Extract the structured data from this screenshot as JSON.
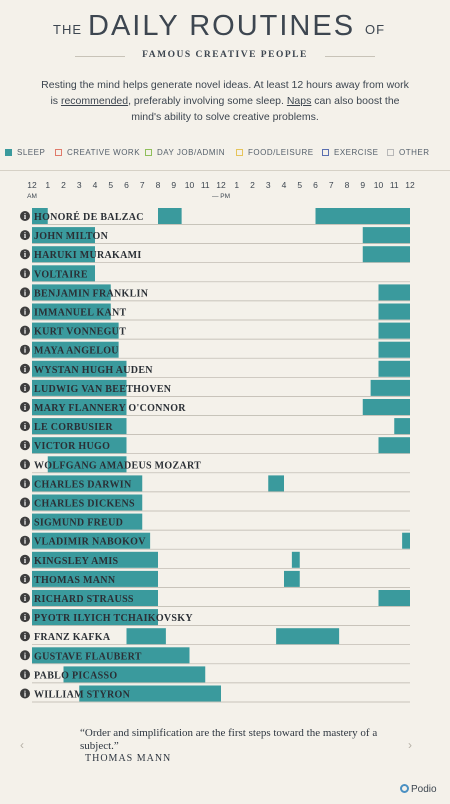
{
  "header": {
    "the": "THE",
    "title": "DAILY ROUTINES",
    "of": "OF",
    "subtitle": "FAMOUS CREATIVE PEOPLE"
  },
  "intro": {
    "part1": "Resting the mind helps generate novel ideas. At least 12 hours away from work is ",
    "link1": "recommended",
    "part2": ", preferably involving some sleep. ",
    "link2": "Naps",
    "part3": " can also boost the mind's ability to solve creative problems."
  },
  "legend": [
    {
      "label": "SLEEP",
      "color": "#3a9a9d",
      "filled": true
    },
    {
      "label": "CREATIVE WORK",
      "color": "#e07a6a",
      "filled": false
    },
    {
      "label": "DAY JOB/ADMIN",
      "color": "#8fbf5a",
      "filled": false
    },
    {
      "label": "FOOD/LEISURE",
      "color": "#e6c45a",
      "filled": false
    },
    {
      "label": "EXERCISE",
      "color": "#5a6fb0",
      "filled": false
    },
    {
      "label": "OTHER",
      "color": "#b8b8b8",
      "filled": false
    }
  ],
  "chart_data": {
    "type": "bar",
    "orientation": "horizontal-timeline",
    "tick_labels": [
      "12",
      "1",
      "2",
      "3",
      "4",
      "5",
      "6",
      "7",
      "8",
      "9",
      "10",
      "11",
      "12",
      "1",
      "2",
      "3",
      "4",
      "5",
      "6",
      "7",
      "8",
      "9",
      "10",
      "11",
      "12"
    ],
    "am_label": "AM",
    "pm_label": "PM",
    "x_range_hours": [
      0,
      24
    ],
    "sleep_color": "#3a9a9d",
    "series": [
      {
        "name": "HONORÉ DE BALZAC",
        "sleep": [
          [
            0,
            1
          ],
          [
            8,
            9.5
          ],
          [
            18,
            24
          ]
        ]
      },
      {
        "name": "JOHN MILTON",
        "sleep": [
          [
            0,
            4
          ],
          [
            21,
            24
          ]
        ]
      },
      {
        "name": "HARUKI MURAKAMI",
        "sleep": [
          [
            0,
            4
          ],
          [
            21,
            24
          ]
        ]
      },
      {
        "name": "VOLTAIRE",
        "sleep": [
          [
            0,
            4
          ]
        ]
      },
      {
        "name": "BENJAMIN FRANKLIN",
        "sleep": [
          [
            0,
            5
          ],
          [
            22,
            24
          ]
        ]
      },
      {
        "name": "IMMANUEL KANT",
        "sleep": [
          [
            0,
            5
          ],
          [
            22,
            24
          ]
        ]
      },
      {
        "name": "KURT VONNEGUT",
        "sleep": [
          [
            0,
            5.5
          ],
          [
            22,
            24
          ]
        ]
      },
      {
        "name": "MAYA ANGELOU",
        "sleep": [
          [
            0,
            5.5
          ],
          [
            22,
            24
          ]
        ]
      },
      {
        "name": "WYSTAN HUGH AUDEN",
        "sleep": [
          [
            0,
            6
          ],
          [
            22,
            24
          ]
        ]
      },
      {
        "name": "LUDWIG VAN BEETHOVEN",
        "sleep": [
          [
            0,
            6
          ],
          [
            21.5,
            24
          ]
        ]
      },
      {
        "name": "MARY FLANNERY O'CONNOR",
        "sleep": [
          [
            0,
            6
          ],
          [
            21,
            24
          ]
        ]
      },
      {
        "name": "LE CORBUSIER",
        "sleep": [
          [
            0,
            6
          ],
          [
            23,
            24
          ]
        ]
      },
      {
        "name": "VICTOR HUGO",
        "sleep": [
          [
            0,
            6
          ],
          [
            22,
            24
          ]
        ]
      },
      {
        "name": "WOLFGANG AMADEUS MOZART",
        "sleep": [
          [
            1,
            6
          ]
        ]
      },
      {
        "name": "CHARLES DARWIN",
        "sleep": [
          [
            0,
            7
          ],
          [
            15,
            16
          ]
        ]
      },
      {
        "name": "CHARLES DICKENS",
        "sleep": [
          [
            0,
            7
          ]
        ]
      },
      {
        "name": "SIGMUND FREUD",
        "sleep": [
          [
            0,
            7
          ]
        ]
      },
      {
        "name": "VLADIMIR NABOKOV",
        "sleep": [
          [
            0,
            7.5
          ],
          [
            23.5,
            24
          ]
        ]
      },
      {
        "name": "KINGSLEY AMIS",
        "sleep": [
          [
            0,
            8
          ],
          [
            16.5,
            17
          ]
        ]
      },
      {
        "name": "THOMAS MANN",
        "sleep": [
          [
            0,
            8
          ],
          [
            16,
            17
          ]
        ]
      },
      {
        "name": "RICHARD STRAUSS",
        "sleep": [
          [
            0,
            8
          ],
          [
            22,
            24
          ]
        ]
      },
      {
        "name": "PYOTR ILYICH TCHAIKOVSKY",
        "sleep": [
          [
            0,
            8
          ]
        ]
      },
      {
        "name": "FRANZ KAFKA",
        "sleep": [
          [
            6,
            8.5
          ],
          [
            15.5,
            19.5
          ]
        ]
      },
      {
        "name": "GUSTAVE FLAUBERT",
        "sleep": [
          [
            0,
            10
          ]
        ]
      },
      {
        "name": "PABLO PICASSO",
        "sleep": [
          [
            2,
            11
          ]
        ]
      },
      {
        "name": "WILLIAM STYRON",
        "sleep": [
          [
            3,
            12
          ]
        ]
      }
    ]
  },
  "quote": {
    "text": "“Order and simplification are the first steps toward the mastery of a subject.”",
    "author": "THOMAS MANN"
  },
  "nav": {
    "prev": "‹",
    "next": "›"
  },
  "brand": {
    "name": "Podio"
  }
}
